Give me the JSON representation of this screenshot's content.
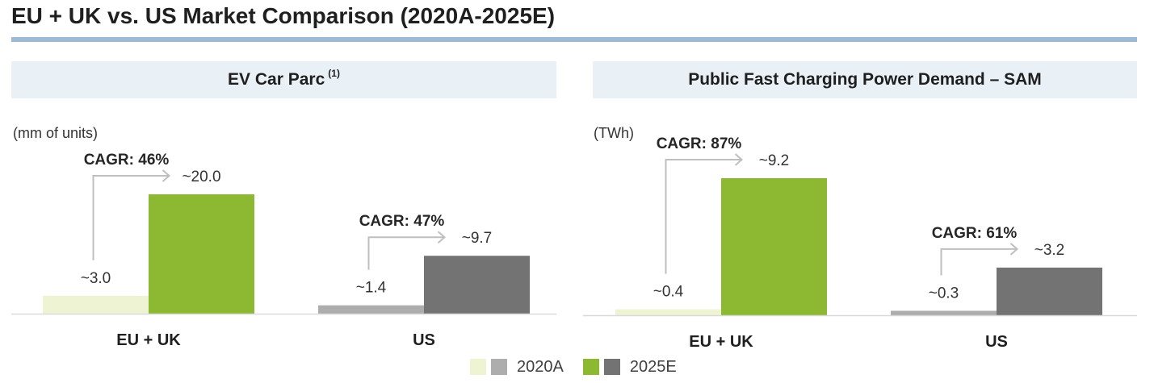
{
  "title": "EU + UK vs. US Market Comparison (2020A-2025E)",
  "colors": {
    "title_rule": "#9DB9D4",
    "panel_header_bg": "#EAF1F6",
    "arrow": "#BFBFBF",
    "baseline": "#D9D9D9"
  },
  "chart_data": [
    {
      "type": "bar",
      "title": "EV Car Parc",
      "title_footnote": "(1)",
      "ylabel": "(mm of units)",
      "categories": [
        "EU + UK",
        "US"
      ],
      "series": [
        {
          "name": "2020A",
          "values": [
            3.0,
            1.4
          ],
          "value_labels": [
            "~3.0",
            "~1.4"
          ],
          "colors": [
            "#EEF4D3",
            "#ADADAD"
          ]
        },
        {
          "name": "2025E",
          "values": [
            20.0,
            9.7
          ],
          "value_labels": [
            "~20.0",
            "~9.7"
          ],
          "colors": [
            "#8DB832",
            "#737373"
          ]
        }
      ],
      "cagr_labels": [
        "CAGR: 46%",
        "CAGR: 47%"
      ],
      "grid": false,
      "legend": "bottom-center"
    },
    {
      "type": "bar",
      "title": "Public Fast Charging Power Demand – SAM",
      "ylabel": "(TWh)",
      "categories": [
        "EU + UK",
        "US"
      ],
      "series": [
        {
          "name": "2020A",
          "values": [
            0.4,
            0.3
          ],
          "value_labels": [
            "~0.4",
            "~0.3"
          ],
          "colors": [
            "#EEF4D3",
            "#ADADAD"
          ]
        },
        {
          "name": "2025E",
          "values": [
            9.2,
            3.2
          ],
          "value_labels": [
            "~9.2",
            "~3.2"
          ],
          "colors": [
            "#8DB832",
            "#737373"
          ]
        }
      ],
      "cagr_labels": [
        "CAGR: 87%",
        "CAGR: 61%"
      ],
      "grid": false,
      "legend": "bottom-center"
    }
  ]
}
